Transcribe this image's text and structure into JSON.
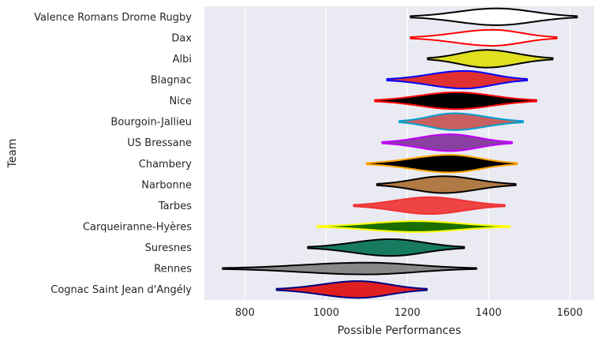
{
  "chart_data": {
    "type": "violin",
    "orientation": "horizontal",
    "xlabel": "Possible Performances",
    "ylabel": "Team",
    "xlim": [
      700,
      1660
    ],
    "xticks": [
      800,
      1000,
      1200,
      1400,
      1600
    ],
    "grid": true,
    "legend": "none",
    "background": "#eaeaf2",
    "series": [
      {
        "name": "Valence Romans Drome Rugby",
        "min": 1208,
        "max": 1618,
        "median": 1420,
        "halfwidth": 0.4,
        "fill": "#ffffff",
        "edge": "#000000"
      },
      {
        "name": "Dax",
        "min": 1208,
        "max": 1568,
        "median": 1410,
        "halfwidth": 0.38,
        "fill": "#ffffff",
        "edge": "#ff0000"
      },
      {
        "name": "Albi",
        "min": 1250,
        "max": 1558,
        "median": 1395,
        "halfwidth": 0.42,
        "fill": "#e0e020",
        "edge": "#000000"
      },
      {
        "name": "Blagnac",
        "min": 1150,
        "max": 1495,
        "median": 1340,
        "halfwidth": 0.42,
        "fill": "#e03030",
        "edge": "#0000ff"
      },
      {
        "name": "Nice",
        "min": 1120,
        "max": 1518,
        "median": 1320,
        "halfwidth": 0.4,
        "fill": "#000000",
        "edge": "#ff0000"
      },
      {
        "name": "Bourgoin-Jallieu",
        "min": 1180,
        "max": 1485,
        "median": 1315,
        "halfwidth": 0.4,
        "fill": "#c86060",
        "edge": "#00a0d0"
      },
      {
        "name": "US Bressane",
        "min": 1138,
        "max": 1458,
        "median": 1305,
        "halfwidth": 0.4,
        "fill": "#8a40a0",
        "edge": "#c000ff"
      },
      {
        "name": "Chambery",
        "min": 1100,
        "max": 1470,
        "median": 1305,
        "halfwidth": 0.42,
        "fill": "#000000",
        "edge": "#ffa500"
      },
      {
        "name": "Narbonne",
        "min": 1125,
        "max": 1467,
        "median": 1290,
        "halfwidth": 0.4,
        "fill": "#b07a45",
        "edge": "#000000"
      },
      {
        "name": "Tarbes",
        "min": 1068,
        "max": 1440,
        "median": 1255,
        "halfwidth": 0.4,
        "fill": "#ef4444",
        "edge": "#ef3333"
      },
      {
        "name": "Carqueiranne-Hyères",
        "min": 978,
        "max": 1452,
        "median": 1220,
        "halfwidth": 0.26,
        "fill": "#1a6e00",
        "edge": "#ffff00"
      },
      {
        "name": "Suresnes",
        "min": 955,
        "max": 1340,
        "median": 1160,
        "halfwidth": 0.4,
        "fill": "#187a60",
        "edge": "#000000"
      },
      {
        "name": "Rennes",
        "min": 745,
        "max": 1370,
        "median": 1100,
        "halfwidth": 0.28,
        "fill": "#888888",
        "edge": "#000000"
      },
      {
        "name": "Cognac Saint Jean d'Angély",
        "min": 878,
        "max": 1248,
        "median": 1080,
        "halfwidth": 0.4,
        "fill": "#e02020",
        "edge": "#000080"
      }
    ]
  }
}
